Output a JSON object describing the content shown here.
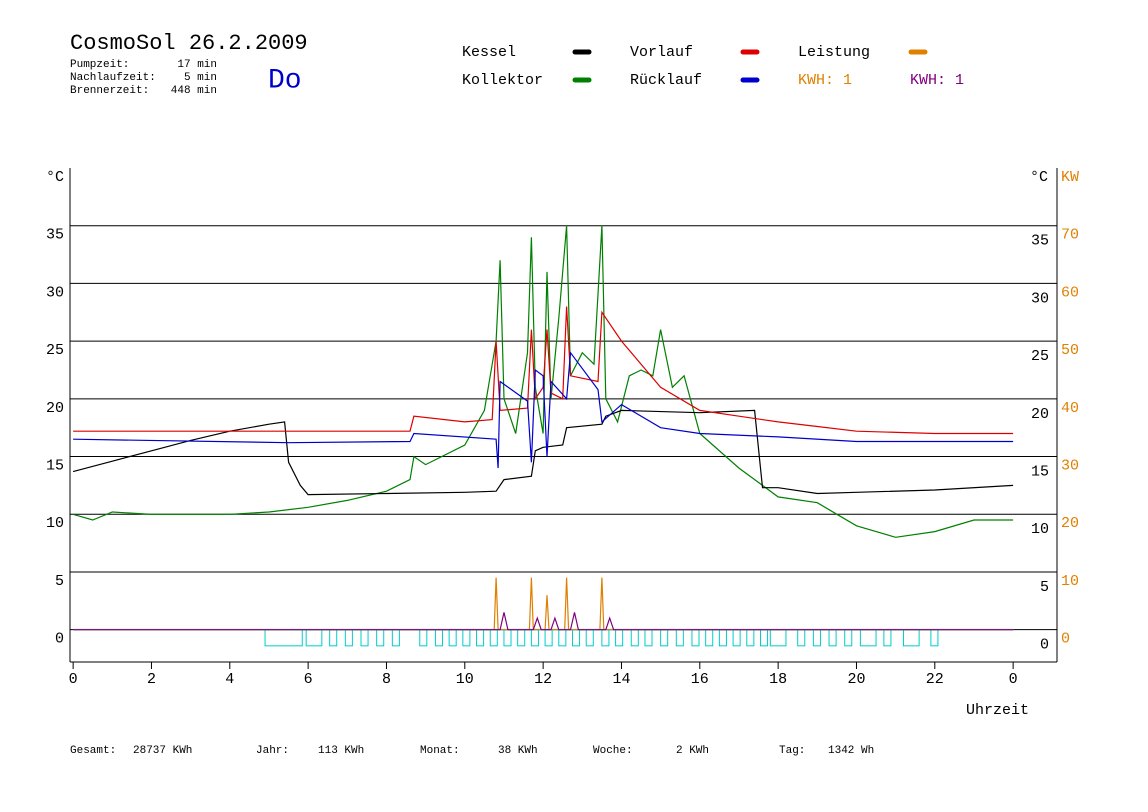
{
  "chart_data": {
    "type": "line",
    "title": "CosmoSol 26.2.2009",
    "info": [
      [
        "Pumpzeit:",
        "17 min"
      ],
      [
        "Nachlaufzeit:",
        "5 min"
      ],
      [
        "Brennerzeit:",
        "448 min"
      ]
    ],
    "weekday": "Do",
    "y_label": "°C",
    "y2_unit_label": "°C",
    "y2_label": "KW",
    "x_label": "Uhrzeit",
    "xlim": [
      -0.08,
      25.12
    ],
    "xticks": [
      0,
      2,
      4,
      6,
      8,
      10,
      12,
      14,
      16,
      18,
      20,
      22,
      {
        "value": 24,
        "label": "0"
      }
    ],
    "ylim": [
      -2.8,
      40
    ],
    "yticks": [
      0,
      5,
      10,
      15,
      20,
      25,
      30,
      35
    ],
    "y2lim": [
      -5.6,
      80
    ],
    "y2ticks": [
      0,
      10,
      20,
      30,
      40,
      50,
      60,
      70
    ],
    "grid": true,
    "series": [
      {
        "name": "Kessel",
        "color": "#000000",
        "x": [
          0,
          1,
          2,
          3,
          4,
          5,
          5.4,
          5.5,
          5.8,
          6,
          8,
          10,
          10.8,
          11,
          11.7,
          11.8,
          12,
          12.5,
          12.6,
          13.5,
          13.6,
          14,
          16,
          17.4,
          17.6,
          18,
          19,
          20,
          22,
          24
        ],
        "values": [
          13.7,
          14.6,
          15.5,
          16.4,
          17.2,
          17.8,
          18,
          14.5,
          12.5,
          11.7,
          11.8,
          11.9,
          12,
          13,
          13.3,
          15.5,
          15.8,
          16,
          17.5,
          17.8,
          18.5,
          19,
          18.8,
          19,
          12.3,
          12.3,
          11.8,
          11.9,
          12.1,
          12.5
        ]
      },
      {
        "name": "Vorlauf",
        "color": "#dd0000",
        "x": [
          0,
          4,
          8.6,
          8.7,
          10,
          10.7,
          10.8,
          10.9,
          11.6,
          11.7,
          11.8,
          12,
          12.1,
          12.2,
          12.5,
          12.6,
          12.7,
          13.4,
          13.5,
          14,
          15,
          16,
          17,
          18,
          19,
          20,
          22,
          24
        ],
        "values": [
          17.2,
          17.2,
          17.2,
          18.5,
          18,
          18.2,
          25,
          19,
          19.2,
          26,
          20,
          21,
          26,
          20.5,
          20,
          28,
          22,
          21.5,
          27.5,
          25,
          21,
          19,
          18.5,
          18,
          17.6,
          17.2,
          17,
          17
        ]
      },
      {
        "name": "Leistung",
        "color": "#e08000",
        "axis": "y2",
        "x": [
          0,
          10.75,
          10.8,
          10.85,
          11.65,
          11.7,
          11.75,
          12.05,
          12.1,
          12.15,
          12.55,
          12.6,
          12.65,
          13.45,
          13.5,
          13.55,
          24
        ],
        "values": [
          0,
          0,
          9,
          0,
          0,
          9,
          0,
          0,
          6,
          0,
          0,
          9,
          0,
          0,
          9,
          0,
          0
        ]
      },
      {
        "name": "Kollektor",
        "color": "#008000",
        "x": [
          0,
          0.5,
          1,
          2,
          3,
          4,
          5,
          6,
          7,
          8,
          8.6,
          8.7,
          9,
          10,
          10.5,
          10.8,
          10.9,
          11,
          11.3,
          11.6,
          11.7,
          11.8,
          12,
          12.1,
          12.2,
          12.4,
          12.6,
          12.7,
          13,
          13.3,
          13.5,
          13.6,
          13.9,
          14.2,
          14.5,
          14.8,
          15,
          15.3,
          15.6,
          16,
          17,
          18,
          19,
          19.5,
          20,
          21,
          22,
          23,
          24
        ],
        "values": [
          10,
          9.5,
          10.2,
          10,
          10,
          10,
          10.2,
          10.6,
          11.2,
          12,
          13,
          15,
          14.3,
          16,
          19,
          25,
          32,
          20,
          17,
          24,
          34,
          21,
          17,
          31,
          20,
          27,
          35,
          22,
          24,
          23,
          35,
          20,
          18,
          22,
          22.5,
          22,
          26,
          21,
          22,
          17,
          14,
          11.5,
          11,
          10,
          9,
          8,
          8.5,
          9.5,
          9.5
        ]
      },
      {
        "name": "Rücklauf",
        "color": "#0000cc",
        "x": [
          0,
          5.5,
          8.6,
          8.7,
          10.8,
          10.85,
          10.9,
          11.6,
          11.7,
          11.8,
          12,
          12.1,
          12.2,
          12.6,
          12.7,
          13.4,
          13.5,
          14,
          15,
          16,
          18,
          20,
          22,
          24
        ],
        "values": [
          16.5,
          16.2,
          16.3,
          17,
          16.5,
          14,
          21.5,
          19.8,
          14.5,
          22.5,
          22,
          15,
          21.5,
          20,
          24,
          20.8,
          18,
          19.5,
          17.5,
          17,
          16.7,
          16.3,
          16.3,
          16.3
        ]
      },
      {
        "color": "#800080",
        "axis": "y2",
        "x": [
          0,
          10.9,
          11,
          11.1,
          11.75,
          11.85,
          11.95,
          12.2,
          12.3,
          12.4,
          12.7,
          12.8,
          12.9,
          13.6,
          13.7,
          13.8,
          24
        ],
        "values": [
          0,
          0,
          3,
          0,
          0,
          2,
          0,
          0,
          2,
          0,
          0,
          3,
          0,
          0,
          2,
          0,
          0
        ]
      }
    ],
    "kwh_labels": [
      {
        "text": "KWH: 1",
        "color": "#e08000"
      },
      {
        "text": "KWH: 1",
        "color": "#800080"
      }
    ],
    "pump": {
      "color": "#00cccc",
      "low": -1.4,
      "periods": [
        [
          4.9,
          5.85
        ],
        [
          5.95,
          6.35
        ],
        [
          6.55,
          6.73
        ],
        [
          6.95,
          7.13
        ],
        [
          7.35,
          7.53
        ],
        [
          7.75,
          7.93
        ],
        [
          8.15,
          8.33
        ],
        [
          8.85,
          9.03
        ],
        [
          9.25,
          9.43
        ],
        [
          9.6,
          9.78
        ],
        [
          9.95,
          10.13
        ],
        [
          10.3,
          10.48
        ],
        [
          10.65,
          10.83
        ],
        [
          11.0,
          11.18
        ],
        [
          11.35,
          11.53
        ],
        [
          11.7,
          11.88
        ],
        [
          12.05,
          12.23
        ],
        [
          12.4,
          12.58
        ],
        [
          12.75,
          12.93
        ],
        [
          13.1,
          13.28
        ],
        [
          13.5,
          13.68
        ],
        [
          13.85,
          14.03
        ],
        [
          14.25,
          14.43
        ],
        [
          14.6,
          14.78
        ],
        [
          15.0,
          15.18
        ],
        [
          15.4,
          15.58
        ],
        [
          15.8,
          15.98
        ],
        [
          16.15,
          16.33
        ],
        [
          16.5,
          16.68
        ],
        [
          16.85,
          17.03
        ],
        [
          17.2,
          17.38
        ],
        [
          17.55,
          17.73
        ],
        [
          17.8,
          18.2
        ],
        [
          18.5,
          18.68
        ],
        [
          18.9,
          19.08
        ],
        [
          19.3,
          19.48
        ],
        [
          19.7,
          19.88
        ],
        [
          20.1,
          20.5
        ],
        [
          20.7,
          20.88
        ],
        [
          21.2,
          21.6
        ],
        [
          21.9,
          22.08
        ]
      ]
    },
    "footer": [
      [
        "Gesamt:",
        "28737 KWh"
      ],
      [
        "Jahr:",
        "113 KWh"
      ],
      [
        "Monat:",
        "38 KWh"
      ],
      [
        "Woche:",
        "2 KWh"
      ],
      [
        "Tag:",
        "1342 Wh"
      ]
    ]
  }
}
